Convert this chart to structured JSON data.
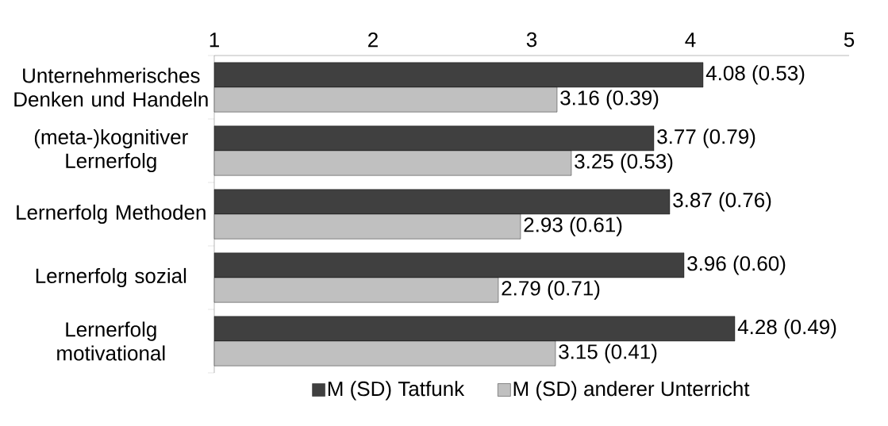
{
  "chart_data": {
    "type": "bar",
    "orientation": "horizontal",
    "categories": [
      "Unternehmerisches Denken und Handeln",
      "(meta-)kognitiver Lernerfolg",
      "Lernerfolg Methoden",
      "Lernerfolg sozial",
      "Lernerfolg motivational"
    ],
    "series": [
      {
        "name": "M (SD) Tatfunk",
        "color": "#404040",
        "values": [
          4.08,
          3.77,
          3.87,
          3.96,
          4.28
        ],
        "value_labels": [
          "4.08 (0.53)",
          "3.77 (0.79)",
          "3.87 (0.76)",
          "3.96 (0.60)",
          "4.28 (0.49)"
        ]
      },
      {
        "name": "M (SD) anderer Unterricht",
        "color": "#c0c0c0",
        "values": [
          3.16,
          3.25,
          2.93,
          2.79,
          3.15
        ],
        "value_labels": [
          "3.16 (0.39)",
          "3.25 (0.53)",
          "2.93 (0.61)",
          "2.79 (0.71)",
          "3.15 (0.41)"
        ]
      }
    ],
    "xlim": [
      1,
      5
    ],
    "xticks": [
      1,
      2,
      3,
      4,
      5
    ],
    "grid": false,
    "legend": "bottom"
  }
}
